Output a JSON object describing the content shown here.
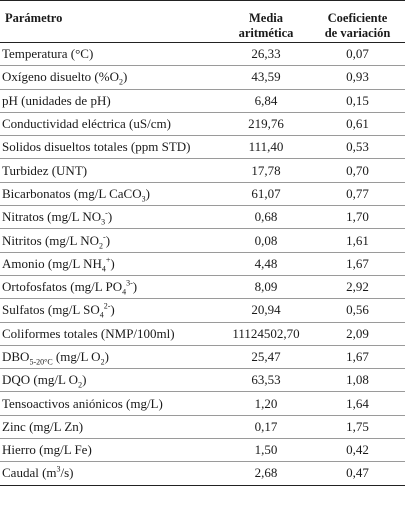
{
  "header": {
    "parametro": "Parámetro",
    "media": "Media aritmética",
    "coef": "Coeficiente de variación"
  },
  "rows": [
    {
      "label": "Temperatura (°C)",
      "sub": "",
      "sup": "",
      "tail": "",
      "media": "26,33",
      "coef": "0,07"
    },
    {
      "label": "Oxígeno disuelto (%O",
      "sub": "2",
      "sup": "",
      "tail": ")",
      "media": "43,59",
      "coef": "0,93"
    },
    {
      "label": "pH (unidades de pH)",
      "sub": "",
      "sup": "",
      "tail": "",
      "media": "6,84",
      "coef": "0,15"
    },
    {
      "label": "Conductividad eléctrica (uS/cm)",
      "sub": "",
      "sup": "",
      "tail": "",
      "media": "219,76",
      "coef": "0,61"
    },
    {
      "label": "Solidos disueltos totales (ppm STD)",
      "sub": "",
      "sup": "",
      "tail": "",
      "media": "111,40",
      "coef": "0,53"
    },
    {
      "label": "Turbidez (UNT)",
      "sub": "",
      "sup": "",
      "tail": "",
      "media": "17,78",
      "coef": "0,70"
    },
    {
      "label": "Bicarbonatos (mg/L CaCO",
      "sub": "3",
      "sup": "",
      "tail": ")",
      "media": "61,07",
      "coef": "0,77"
    },
    {
      "label": "Nitratos (mg/L NO",
      "sub": "3",
      "sup": "-",
      "tail": ")",
      "media": "0,68",
      "coef": "1,70"
    },
    {
      "label": "Nitritos (mg/L NO",
      "sub": "2",
      "sup": "-",
      "tail": ")",
      "media": "0,08",
      "coef": "1,61"
    },
    {
      "label": "Amonio (mg/L NH",
      "sub": "4",
      "sup": "+",
      "tail": ")",
      "media": "4,48",
      "coef": "1,67"
    },
    {
      "label": "Ortofosfatos (mg/L PO",
      "sub": "4",
      "sup": "3-",
      "tail": ")",
      "media": "8,09",
      "coef": "2,92"
    },
    {
      "label": "Sulfatos (mg/L SO",
      "sub": "4",
      "sup": "2-",
      "tail": ")",
      "media": "20,94",
      "coef": "0,56"
    },
    {
      "label": "Coliformes totales (NMP/100ml)",
      "sub": "",
      "sup": "",
      "tail": "",
      "media": "11124502,70",
      "coef": "2,09"
    },
    {
      "label": "DBO",
      "sub": "5-20°C",
      "sup": "",
      "tail": " (mg/L O",
      "sub2": "2",
      "tail2": ")",
      "media": "25,47",
      "coef": "1,67"
    },
    {
      "label": "DQO (mg/L O",
      "sub": "2",
      "sup": "",
      "tail": ")",
      "media": "63,53",
      "coef": "1,08"
    },
    {
      "label": "Tensoactivos aniónicos (mg/L)",
      "sub": "",
      "sup": "",
      "tail": "",
      "media": "1,20",
      "coef": "1,64"
    },
    {
      "label": "Zinc (mg/L Zn)",
      "sub": "",
      "sup": "",
      "tail": "",
      "media": "0,17",
      "coef": "1,75"
    },
    {
      "label": "Hierro (mg/L Fe)",
      "sub": "",
      "sup": "",
      "tail": "",
      "media": "1,50",
      "coef": "0,42"
    },
    {
      "label": "Caudal (m",
      "sub": "",
      "sup": "3",
      "tail": "/s)",
      "media": "2,68",
      "coef": "0,47"
    }
  ]
}
